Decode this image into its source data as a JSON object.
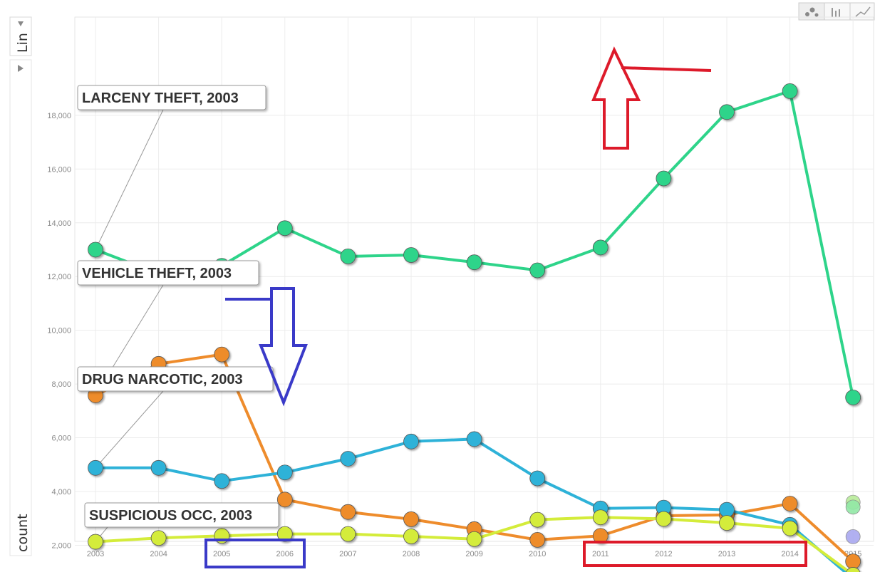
{
  "controls": {
    "y_scale_label": "Lin",
    "y_axis_selector_label": "count",
    "chart_type_buttons": [
      {
        "name": "bubble-chart-icon"
      },
      {
        "name": "bar-chart-icon"
      },
      {
        "name": "line-chart-icon"
      }
    ]
  },
  "chart_data": {
    "type": "line",
    "xlabel": "",
    "ylabel": "count",
    "x": [
      "2003",
      "2004",
      "2005",
      "2006",
      "2007",
      "2008",
      "2009",
      "2010",
      "2011",
      "2012",
      "2013",
      "2014",
      "2015"
    ],
    "ylim": [
      0,
      19500
    ],
    "yticks": [
      "2,000",
      "4,000",
      "6,000",
      "8,000",
      "10,000",
      "12,000",
      "14,000",
      "16,000",
      "18,000"
    ],
    "ytick_values": [
      2000,
      4000,
      6000,
      8000,
      10000,
      12000,
      14000,
      16000,
      18000
    ],
    "grid": true,
    "series": [
      {
        "name": "LARCENY THEFT",
        "color": "#2ed48a",
        "values": [
          13000,
          12100,
          12400,
          13800,
          12750,
          12800,
          12530,
          12230,
          13080,
          15650,
          18120,
          18900,
          7500
        ]
      },
      {
        "name": "VEHICLE THEFT",
        "color": "#ee8c2c",
        "values": [
          7580,
          8750,
          9100,
          3700,
          3240,
          2970,
          2600,
          2200,
          2350,
          3100,
          3130,
          3550,
          1400
        ]
      },
      {
        "name": "DRUG NARCOTIC",
        "color": "#2eb2d8",
        "values": [
          4880,
          4880,
          4390,
          4710,
          5220,
          5860,
          5950,
          4490,
          3370,
          3400,
          3320,
          2760,
          750
        ]
      },
      {
        "name": "SUSPICIOUS OCC",
        "color": "#d4ec3a",
        "values": [
          2130,
          2270,
          2350,
          2420,
          2420,
          2330,
          2230,
          2950,
          3040,
          2980,
          2830,
          2630,
          900
        ]
      }
    ],
    "extra_points": [
      {
        "x": "2015",
        "y": 3600,
        "color": "#b8ec9a"
      },
      {
        "x": "2015",
        "y": 3420,
        "color": "#92e8a6"
      },
      {
        "x": "2015",
        "y": 2320,
        "color": "#a9a8f0"
      }
    ],
    "annotations": [
      {
        "text": "LARCENY THEFT, 2003",
        "series": 0
      },
      {
        "text": "VEHICLE THEFT, 2003",
        "series": 1
      },
      {
        "text": "DRUG NARCOTIC, 2003",
        "series": 2
      },
      {
        "text": "SUSPICIOUS OCC, 2003",
        "series": 3
      }
    ],
    "overlays": [
      {
        "type": "down-arrow",
        "color": "#3a3ac8",
        "near_year": "2006"
      },
      {
        "type": "up-arrow",
        "color": "#dd1a2a",
        "near_year": "2011"
      },
      {
        "type": "highlight-box",
        "color": "#3a3ac8",
        "from": "2005",
        "to": "2006"
      },
      {
        "type": "highlight-box",
        "color": "#dd1a2a",
        "from": "2011",
        "to": "2014"
      }
    ]
  }
}
